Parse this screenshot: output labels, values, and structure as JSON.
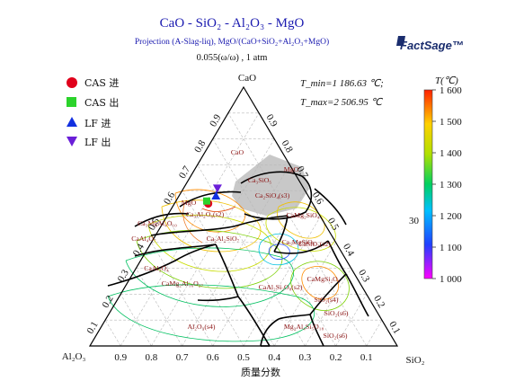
{
  "header": {
    "title": "CaO - SiO₂ - Al₂O₃ - MgO",
    "subtitle": "Projection (A-Slag-liq), MgO/(CaO+SiO₂+Al₂O₃+MgO)",
    "condition": "0.055(ω/ω) , 1 atm",
    "logo": "FactSage™"
  },
  "legend": {
    "items": [
      {
        "label": "CAS 进",
        "marker": "circle",
        "color": "#e0001b"
      },
      {
        "label": "CAS 出",
        "marker": "square",
        "color": "#2bd32b"
      },
      {
        "label": "LF 进",
        "marker": "triangle-up",
        "color": "#1230e0"
      },
      {
        "label": "LF 出",
        "marker": "triangle-down",
        "color": "#6a1fd8"
      }
    ]
  },
  "info": {
    "tmin": "T_min=1 186.63 ℃;",
    "tmax": "T_max=2 506.95 ℃"
  },
  "colorbar": {
    "title": "T(℃)",
    "ticks": [
      "1 600",
      "1 500",
      "1 400",
      "1 300",
      "1 200",
      "1 100",
      "1 000"
    ],
    "side_label": "30",
    "min": 1000,
    "max": 1600
  },
  "axes": {
    "apex_top": "CaO",
    "apex_left": "Al₂O₃",
    "apex_right": "SiO₂",
    "bottom_title": "质量分数",
    "bottom_ticks": [
      "0.9",
      "0.8",
      "0.7",
      "0.6",
      "0.5",
      "0.4",
      "0.3",
      "0.2",
      "0.1"
    ],
    "left_ticks": [
      "0.9",
      "0.8",
      "0.7",
      "0.6",
      "0.5",
      "0.4",
      "0.3",
      "0.2",
      "0.1"
    ],
    "right_ticks": [
      "0.1",
      "0.2",
      "0.3",
      "0.4",
      "0.5",
      "0.6",
      "0.7",
      "0.8",
      "0.9"
    ]
  },
  "regions": [
    "CaO",
    "Ca₃SiO₅",
    "MgO",
    "Ca₂SiO₄(s3)",
    "MgO",
    "Ca₃MgAl₄O₁₀",
    "Ca₃Al₂O₆(s2)",
    "CaAl₄O₇",
    "CaMg₂SiO₄",
    "Ca₂Al₂SiO₇",
    "Ca₃MgSiO₈",
    "CaSiO₃(s2)",
    "CaAl₂O₄",
    "CaMg₂Al₁₆O₂₇",
    "CaAl₂Si₂O₈(s2)",
    "CaMgSi₂O₆",
    "SiO₂(s4)",
    "SiO₂(s6)",
    "Mg₂Al₄Si₅O₁₈",
    "Al₂O₃(s4)",
    "SiO₂(s6)"
  ],
  "chart_data": {
    "type": "ternary",
    "components": [
      "CaO",
      "SiO₂",
      "Al₂O₃"
    ],
    "grid_step": 0.1,
    "points": [
      {
        "series": "CAS 进",
        "CaO": 0.55,
        "SiO2": 0.11,
        "Al2O3": 0.34
      },
      {
        "series": "CAS 出",
        "CaO": 0.56,
        "SiO2": 0.1,
        "Al2O3": 0.34
      },
      {
        "series": "LF 进",
        "CaO": 0.58,
        "SiO2": 0.12,
        "Al2O3": 0.3
      },
      {
        "series": "LF 出",
        "CaO": 0.61,
        "SiO2": 0.11,
        "Al2O3": 0.28
      }
    ]
  }
}
